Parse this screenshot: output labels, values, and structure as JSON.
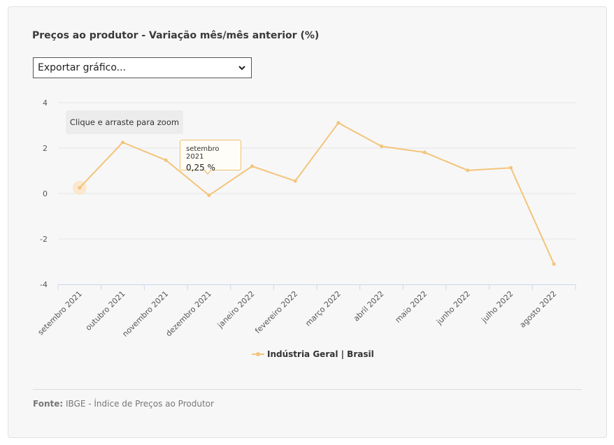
{
  "title": "Preços ao produtor - Variação mês/mês anterior (%)",
  "export": {
    "label": "Exportar gráfico..."
  },
  "zoom_hint": "Clique e arraste para zoom",
  "tooltip": {
    "category": "setembro 2021",
    "value_text": "0,25 %"
  },
  "legend": {
    "label": "Indústria Geral | Brasil"
  },
  "source": {
    "label": "Fonte:",
    "text": " IBGE - Índice de Preços ao Produtor"
  },
  "colors": {
    "series": "#f3c47a",
    "grid": "#e6e6e6",
    "axis": "#ccd6eb",
    "hover_halo": "#fbe3c4"
  },
  "chart_data": {
    "type": "line",
    "categories": [
      "setembro 2021",
      "outubro 2021",
      "novembro 2021",
      "dezembro 2021",
      "janeiro 2022",
      "fevereiro 2022",
      "março 2022",
      "abril 2022",
      "maio 2022",
      "junho 2022",
      "julho 2022",
      "agosto 2022"
    ],
    "series": [
      {
        "name": "Indústria Geral | Brasil",
        "values": [
          0.25,
          2.25,
          1.47,
          -0.08,
          1.2,
          0.55,
          3.11,
          2.08,
          1.81,
          1.02,
          1.13,
          -3.11
        ]
      }
    ],
    "yticks": [
      "4",
      "2",
      "0",
      "-2",
      "-4"
    ],
    "ylim": [
      -4,
      4
    ],
    "grid": true,
    "legend_position": "bottom-center",
    "highlighted_index": 0
  }
}
